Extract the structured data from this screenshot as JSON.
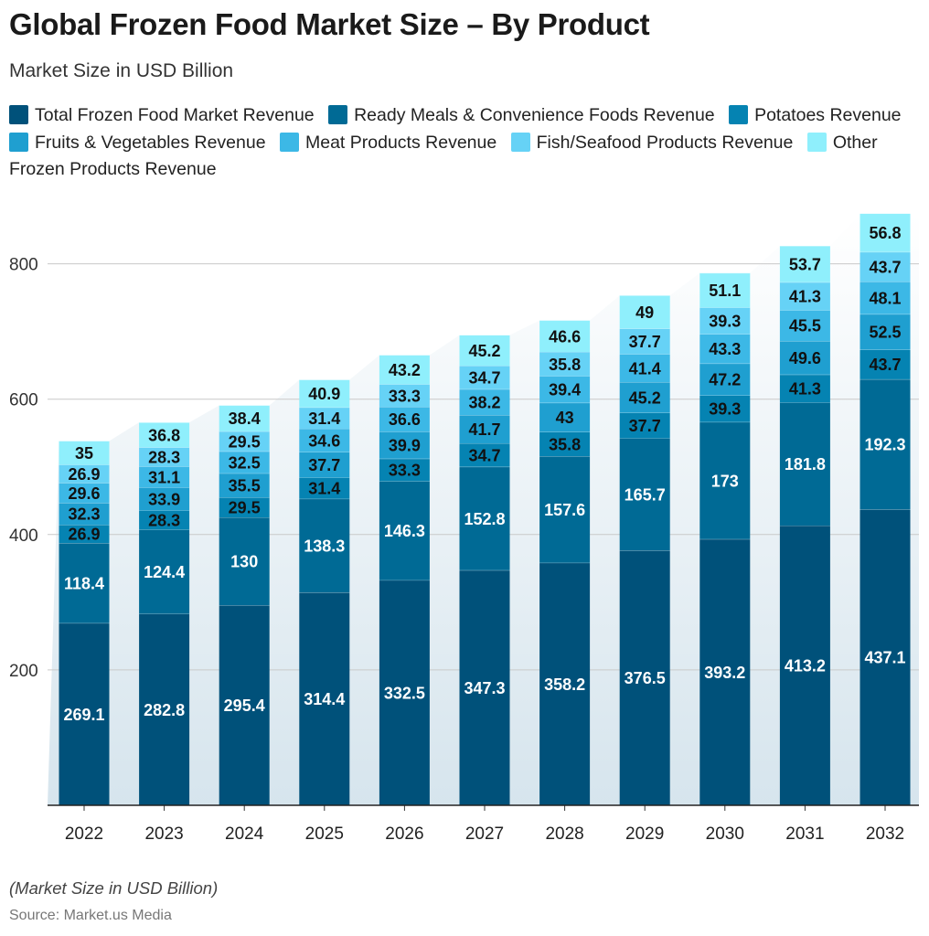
{
  "header": {
    "title": "Global Frozen Food Market Size – By Product",
    "subtitle": "Market Size in USD Billion"
  },
  "footer": {
    "note": "(Market Size in USD Billion)",
    "source": "Source: Market.us Media"
  },
  "chart_data": {
    "type": "bar",
    "stacked": true,
    "title": "Global Frozen Food Market Size – By Product",
    "subtitle": "Market Size in USD Billion",
    "xlabel": "",
    "ylabel": "",
    "ylim": [
      0,
      880
    ],
    "y_ticks": [
      200,
      400,
      600,
      800
    ],
    "grid": true,
    "legend_position": "top",
    "categories": [
      "2022",
      "2023",
      "2024",
      "2025",
      "2026",
      "2027",
      "2028",
      "2029",
      "2030",
      "2031",
      "2032"
    ],
    "series": [
      {
        "name": "Total Frozen Food Market Revenue",
        "color": "#00517a",
        "values": [
          269.1,
          282.8,
          295.4,
          314.4,
          332.5,
          347.3,
          358.2,
          376.5,
          393.2,
          413.2,
          437.1
        ]
      },
      {
        "name": "Ready Meals & Convenience Foods Revenue",
        "color": "#006a95",
        "values": [
          118.4,
          124.4,
          130,
          138.3,
          146.3,
          152.8,
          157.6,
          165.7,
          173,
          181.8,
          192.3
        ]
      },
      {
        "name": "Potatoes Revenue",
        "color": "#0583b2",
        "values": [
          26.9,
          28.3,
          29.5,
          31.4,
          33.3,
          34.7,
          35.8,
          37.7,
          39.3,
          41.3,
          43.7
        ]
      },
      {
        "name": "Fruits & Vegetables Revenue",
        "color": "#1f9fd0",
        "values": [
          32.3,
          33.9,
          35.5,
          37.7,
          39.9,
          41.7,
          43,
          45.2,
          47.2,
          49.6,
          52.5
        ]
      },
      {
        "name": "Meat Products Revenue",
        "color": "#3cb8e6",
        "values": [
          29.6,
          31.1,
          32.5,
          34.6,
          36.6,
          38.2,
          39.4,
          41.4,
          43.3,
          45.5,
          48.1
        ]
      },
      {
        "name": "Fish/Seafood Products Revenue",
        "color": "#66d2f6",
        "values": [
          26.9,
          28.3,
          29.5,
          31.4,
          33.3,
          34.7,
          35.8,
          37.7,
          39.3,
          41.3,
          43.7
        ]
      },
      {
        "name": "Other Frozen Products Revenue",
        "color": "#8feffc",
        "values": [
          35,
          36.8,
          38.4,
          40.9,
          43.2,
          45.2,
          46.6,
          49,
          51.1,
          53.7,
          56.8
        ]
      }
    ]
  }
}
